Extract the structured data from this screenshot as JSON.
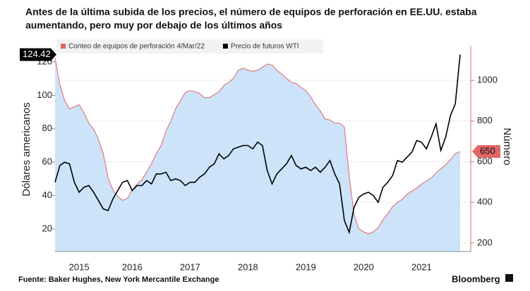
{
  "chart_data": {
    "type": "line",
    "title": [
      "Antes de la última subida de los precios, el número de equipos de perforación en EE.UU. estaba",
      "aumentando, pero muy por debajo de los últimos años"
    ],
    "y_label": "Dólares americanos",
    "y2_label": "Número",
    "source": "Fuente: Baker Hughes, New York Mercantile Exchange",
    "brand": "Bloomberg",
    "categories": [
      null,
      null,
      null,
      null,
      null,
      "2015",
      null,
      null,
      null,
      null,
      null,
      null,
      null,
      null,
      null,
      null,
      "2016",
      null,
      null,
      null,
      null,
      null,
      null,
      null,
      null,
      null,
      null,
      null,
      "2017",
      null,
      null,
      null,
      null,
      null,
      null,
      null,
      null,
      null,
      null,
      null,
      "2018",
      null,
      null,
      null,
      null,
      null,
      null,
      null,
      null,
      null,
      null,
      null,
      "2019",
      null,
      null,
      null,
      null,
      null,
      null,
      null,
      null,
      null,
      null,
      null,
      "2020",
      null,
      null,
      null,
      null,
      null,
      null,
      null,
      null,
      null,
      null,
      null,
      "2021",
      null,
      null,
      null,
      null,
      null,
      null,
      null,
      null
    ],
    "series": [
      {
        "name": "Conteo de equipos de perforación 4/Mar/22",
        "color": "#e06666",
        "fill": "#cce3fa",
        "axis": "y2",
        "values": [
          1110,
          980,
          900,
          860,
          870,
          880,
          840,
          790,
          760,
          710,
          640,
          520,
          460,
          430,
          410,
          420,
          460,
          490,
          510,
          550,
          590,
          640,
          680,
          750,
          800,
          860,
          900,
          940,
          950,
          945,
          935,
          915,
          915,
          930,
          945,
          975,
          990,
          1010,
          1050,
          1060,
          1050,
          1045,
          1050,
          1065,
          1080,
          1075,
          1050,
          1030,
          1010,
          990,
          985,
          965,
          950,
          920,
          880,
          850,
          810,
          805,
          790,
          790,
          770,
          530,
          340,
          270,
          255,
          245,
          255,
          275,
          315,
          345,
          380,
          400,
          415,
          440,
          455,
          470,
          490,
          505,
          520,
          545,
          565,
          585,
          610,
          640,
          650
        ],
        "last_label": "650"
      },
      {
        "name": "Precio de futuros WTI",
        "color": "#000000",
        "axis": "y",
        "values": [
          48,
          58,
          60,
          59,
          48,
          42,
          45,
          46,
          42,
          37,
          32,
          31,
          38,
          43,
          48,
          49,
          43,
          46,
          46,
          49,
          47,
          53,
          53,
          54,
          49,
          50,
          49,
          46,
          48,
          48,
          51,
          53,
          57,
          59,
          65,
          62,
          64,
          68,
          69,
          70,
          70,
          68,
          72,
          70,
          55,
          47,
          53,
          56,
          59,
          64,
          58,
          56,
          57,
          55,
          57,
          54,
          57,
          61,
          53,
          47,
          25,
          18,
          33,
          39,
          41,
          42,
          40,
          36,
          45,
          48,
          52,
          61,
          60,
          63,
          66,
          73,
          72,
          68,
          75,
          83,
          67,
          75,
          88,
          95,
          124.42
        ],
        "last_label": "124.42"
      }
    ],
    "ylim": [
      6.5,
      129.7
    ],
    "yticks": [
      20,
      40,
      60,
      80,
      100,
      120
    ],
    "y2lim": [
      158,
      1170
    ],
    "y2ticks": [
      200,
      400,
      600,
      800,
      1000
    ],
    "grid": true
  }
}
